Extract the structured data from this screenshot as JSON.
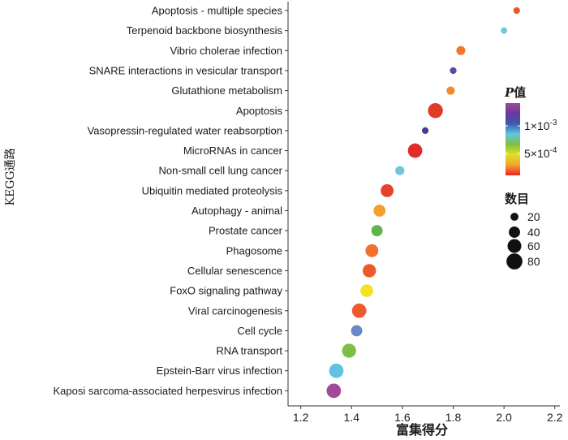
{
  "chart_data": {
    "type": "scatter",
    "xlabel": "富集得分",
    "ylabel": "KEGG通路",
    "xlim": [
      1.15,
      2.22
    ],
    "xticks": [
      1.2,
      1.4,
      1.6,
      1.8,
      2.0,
      2.2
    ],
    "xtick_labels": [
      "1.2",
      "1.4",
      "1.6",
      "1.8",
      "2.0",
      "2.2"
    ],
    "grid": false,
    "categories": [
      "Apoptosis - multiple species",
      "Terpenoid backbone biosynthesis",
      "Vibrio cholerae infection",
      "SNARE interactions in vesicular transport",
      "Glutathione metabolism",
      "Apoptosis",
      "Vasopressin-regulated water reabsorption",
      "MicroRNAs in cancer",
      "Non-small cell lung cancer",
      "Ubiquitin mediated proteolysis",
      "Autophagy - animal",
      "Prostate cancer",
      "Phagosome",
      "Cellular senescence",
      "FoxO signaling pathway",
      "Viral carcinogenesis",
      "Cell cycle",
      "RNA transport",
      "Epstein-Barr virus infection",
      "Kaposi sarcoma-associated herpesvirus infection"
    ],
    "points": [
      {
        "x": 2.05,
        "count": 14,
        "color": "#e8562a"
      },
      {
        "x": 2.0,
        "count": 13,
        "color": "#6fc8dc"
      },
      {
        "x": 1.83,
        "count": 25,
        "color": "#f0772c"
      },
      {
        "x": 1.8,
        "count": 14,
        "color": "#5a4aa8"
      },
      {
        "x": 1.79,
        "count": 22,
        "color": "#f38a2c"
      },
      {
        "x": 1.73,
        "count": 70,
        "color": "#e13a2a"
      },
      {
        "x": 1.69,
        "count": 14,
        "color": "#4a3a98"
      },
      {
        "x": 1.65,
        "count": 65,
        "color": "#e32b28"
      },
      {
        "x": 1.59,
        "count": 26,
        "color": "#73c3da"
      },
      {
        "x": 1.54,
        "count": 52,
        "color": "#e8422b"
      },
      {
        "x": 1.51,
        "count": 45,
        "color": "#f49e2c"
      },
      {
        "x": 1.5,
        "count": 40,
        "color": "#5fb548"
      },
      {
        "x": 1.48,
        "count": 52,
        "color": "#f0702c"
      },
      {
        "x": 1.47,
        "count": 55,
        "color": "#ec5a2b"
      },
      {
        "x": 1.46,
        "count": 50,
        "color": "#f5e022"
      },
      {
        "x": 1.43,
        "count": 65,
        "color": "#ee5a2b"
      },
      {
        "x": 1.42,
        "count": 40,
        "color": "#6a88c8"
      },
      {
        "x": 1.39,
        "count": 62,
        "color": "#7cbf42"
      },
      {
        "x": 1.34,
        "count": 65,
        "color": "#60c2e0"
      },
      {
        "x": 1.33,
        "count": 65,
        "color": "#a4489a"
      }
    ],
    "color_legend": {
      "title_italic": "P",
      "title_suffix": "值",
      "stops": [
        "#a04a9a",
        "#6a3a98",
        "#3a5ab0",
        "#62c6e0",
        "#7cc242",
        "#e0e028",
        "#f5a22c",
        "#e8242a"
      ],
      "labels": [
        {
          "mantissa": "1×10",
          "exponent": "-3",
          "value": 0.001
        },
        {
          "mantissa": "5×10",
          "exponent": "-4",
          "value": 0.0005
        }
      ]
    },
    "size_legend": {
      "title": "数目",
      "items": [
        {
          "label": "20",
          "count": 20
        },
        {
          "label": "40",
          "count": 40
        },
        {
          "label": "60",
          "count": 60
        },
        {
          "label": "80",
          "count": 80
        }
      ]
    }
  }
}
